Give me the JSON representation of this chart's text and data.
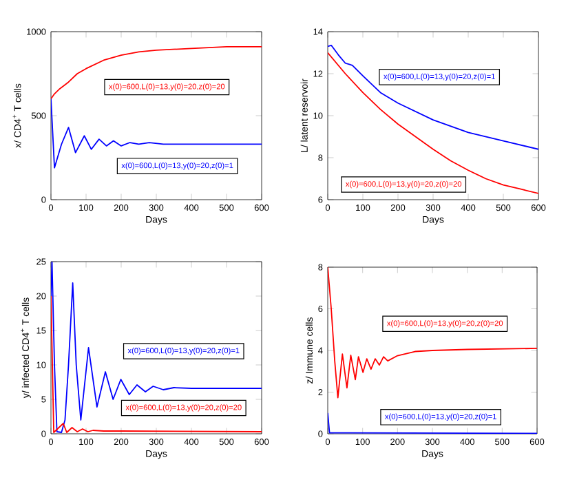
{
  "chart_data": [
    {
      "type": "line",
      "xlabel": "Days",
      "ylabel": "x/ CD4$^{+}$ T cells",
      "xlim": [
        0,
        600
      ],
      "ylim": [
        0,
        1000
      ],
      "xticks": [
        0,
        100,
        200,
        300,
        400,
        500,
        600
      ],
      "yticks": [
        0,
        500,
        1000
      ],
      "series": [
        {
          "name": "x(0)=600,L(0)=13,y(0)=20,z(0)=20",
          "color": "#ff0000",
          "x": [
            0,
            10,
            25,
            50,
            75,
            100,
            150,
            200,
            250,
            300,
            400,
            500,
            600
          ],
          "values": [
            600,
            630,
            660,
            700,
            750,
            780,
            830,
            860,
            880,
            890,
            900,
            910,
            910
          ]
        },
        {
          "name": "x(0)=600,L(0)=13,y(0)=20,z(0)=1",
          "color": "#0000ff",
          "x": [
            0,
            10,
            30,
            50,
            70,
            95,
            115,
            137,
            158,
            178,
            200,
            225,
            250,
            280,
            320,
            400,
            600
          ],
          "values": [
            600,
            190,
            330,
            430,
            280,
            380,
            300,
            360,
            320,
            350,
            320,
            340,
            330,
            340,
            330,
            330,
            330
          ]
        }
      ]
    },
    {
      "type": "line",
      "xlabel": "Days",
      "ylabel": "L/ latent reservoir",
      "xlim": [
        0,
        600
      ],
      "ylim": [
        6,
        14
      ],
      "xticks": [
        0,
        100,
        200,
        300,
        400,
        500,
        600
      ],
      "yticks": [
        6,
        8,
        10,
        12,
        14
      ],
      "series": [
        {
          "name": "x(0)=600,L(0)=13,y(0)=20,z(0)=1",
          "color": "#0000ff",
          "x": [
            0,
            10,
            30,
            50,
            70,
            100,
            150,
            200,
            300,
            400,
            500,
            600
          ],
          "values": [
            13.3,
            13.35,
            12.9,
            12.5,
            12.4,
            11.9,
            11.1,
            10.6,
            9.8,
            9.2,
            8.8,
            8.4
          ]
        },
        {
          "name": "x(0)=600,L(0)=13,y(0)=20,z(0)=20",
          "color": "#ff0000",
          "x": [
            0,
            25,
            50,
            100,
            150,
            200,
            250,
            300,
            350,
            400,
            450,
            500,
            550,
            600
          ],
          "values": [
            13,
            12.5,
            12.0,
            11.1,
            10.3,
            9.6,
            9.0,
            8.4,
            7.85,
            7.4,
            7.0,
            6.7,
            6.5,
            6.3
          ]
        }
      ]
    },
    {
      "type": "line",
      "xlabel": "Days",
      "ylabel": "y/ infected CD4$^{+}$ T cells",
      "xlim": [
        0,
        600
      ],
      "ylim": [
        0,
        25
      ],
      "xticks": [
        0,
        100,
        200,
        300,
        400,
        500,
        600
      ],
      "yticks": [
        0,
        5,
        10,
        15,
        20,
        25
      ],
      "series": [
        {
          "name": "x(0)=600,L(0)=13,y(0)=20,z(0)=1",
          "color": "#0000ff",
          "x": [
            0,
            3,
            10,
            17,
            30,
            40,
            50,
            62,
            72,
            85,
            107,
            131,
            155,
            177,
            199,
            223,
            245,
            269,
            291,
            320,
            350,
            400,
            600
          ],
          "values": [
            20,
            25,
            10,
            0.3,
            0.2,
            2,
            10,
            21.9,
            10,
            2,
            12.5,
            3.9,
            9,
            5,
            7.9,
            5.7,
            7.1,
            6.1,
            6.9,
            6.4,
            6.7,
            6.6,
            6.6
          ]
        },
        {
          "name": "x(0)=600,L(0)=13,y(0)=20,z(0)=20",
          "color": "#ff0000",
          "x": [
            0,
            8,
            35,
            45,
            60,
            75,
            90,
            105,
            120,
            150,
            200,
            600
          ],
          "values": [
            20,
            0.2,
            1.5,
            0.2,
            0.9,
            0.3,
            0.7,
            0.3,
            0.5,
            0.4,
            0.4,
            0.3
          ]
        }
      ]
    },
    {
      "type": "line",
      "xlabel": "Days",
      "ylabel": "z/ Immune cells",
      "xlim": [
        0,
        600
      ],
      "ylim": [
        0,
        8
      ],
      "xticks": [
        0,
        100,
        200,
        300,
        400,
        500,
        600
      ],
      "yticks": [
        0,
        2,
        4,
        6,
        8
      ],
      "series": [
        {
          "name": "x(0)=600,L(0)=13,y(0)=20,z(0)=20",
          "color": "#ff0000",
          "x": [
            0,
            10,
            20,
            29,
            42,
            55,
            66,
            79,
            88,
            101,
            112,
            124,
            136,
            148,
            160,
            172,
            200,
            250,
            300,
            400,
            600
          ],
          "values": [
            8,
            6,
            3.5,
            1.73,
            3.83,
            2.2,
            3.77,
            2.6,
            3.7,
            2.95,
            3.6,
            3.1,
            3.6,
            3.3,
            3.7,
            3.5,
            3.75,
            3.95,
            4.0,
            4.05,
            4.1
          ]
        },
        {
          "name": "x(0)=600,L(0)=13,y(0)=20,z(0)=1",
          "color": "#0000ff",
          "x": [
            0,
            5,
            600
          ],
          "values": [
            1,
            0.05,
            0.02
          ]
        }
      ]
    }
  ]
}
